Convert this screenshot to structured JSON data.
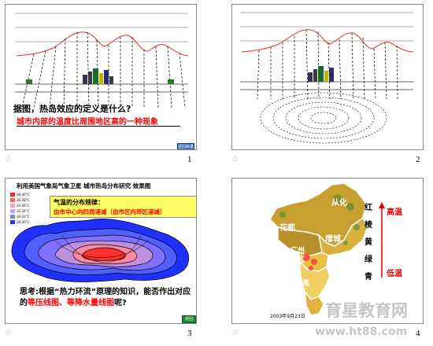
{
  "slides": [
    {
      "number": "1",
      "question_black": "据图，热岛效应的定义是什么?",
      "question_red": "城市内部的温度比周围地区高的一种现象",
      "nav_label": "返回目录"
    },
    {
      "number": "2"
    },
    {
      "number": "3",
      "title": "利用美国气象局气象卫星 城市热岛分布研究 效果图",
      "legend": [
        {
          "label": "38-40°C",
          "color": "#ff2020"
        },
        {
          "label": "36-38°C",
          "color": "#ff6060"
        },
        {
          "label": "34-36°C",
          "color": "#ff9ab0"
        },
        {
          "label": "32-34°C",
          "color": "#c0a0ff"
        },
        {
          "label": "30-32°C",
          "color": "#8080ff"
        },
        {
          "label": "28-30°C",
          "color": "#3030ff"
        }
      ],
      "box_title": "气温的分布规律：",
      "box_body": "由市中心向四周递减（由市区向郊区递减）",
      "question_black": "思考:根据“热力环流”原理的知识，能否作出对应的",
      "question_red": "等压线图、等降水量线图",
      "question_tail": "呢?",
      "nav_label": "返回"
    },
    {
      "number": "4",
      "map_labels": {
        "conghua": "从化",
        "huadu": "花都",
        "zengcheng": "增城",
        "guangzhou": "广州市区",
        "panyu": "番禺"
      },
      "scale_chars": [
        "红",
        "棱",
        "黄",
        "绿",
        "青"
      ],
      "scale_high": "高温",
      "scale_low": "低温",
      "date_caption": "2003年9月23日"
    }
  ],
  "watermark": {
    "line1": "育星教育网",
    "line2": "www.ht88.com"
  },
  "colors": {
    "red_text": "#ff0000",
    "temp_curve": "#e23030",
    "heat_core": "#ff2020",
    "heat_outer": "#2030ff",
    "map_ground": "#d8a828",
    "map_sea": "#f0c040"
  }
}
